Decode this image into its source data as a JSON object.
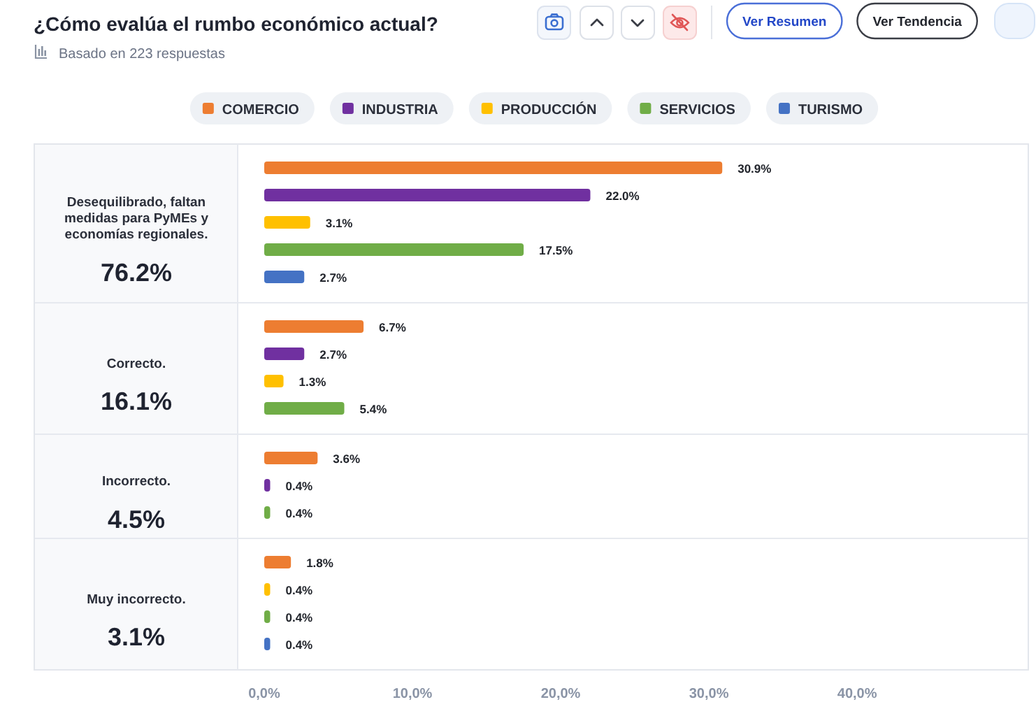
{
  "chart_data": {
    "type": "bar",
    "orientation": "horizontal",
    "title": "¿Cómo evalúa el rumbo económico actual?",
    "subtitle": "Basado en 223 respuestas",
    "categories": [
      "Desequilibrado, faltan medidas para PyMEs y economías regionales.",
      "Correcto.",
      "Incorrecto.",
      "Muy incorrecto."
    ],
    "series": [
      {
        "name": "COMERCIO",
        "color": "#ed7d31",
        "values": [
          30.9,
          6.7,
          3.6,
          1.8
        ],
        "value_labels": [
          "30.9%",
          "6.7%",
          "3.6%",
          "1.8%"
        ]
      },
      {
        "name": "INDUSTRIA",
        "color": "#7030a0",
        "values": [
          22.0,
          2.7,
          0.4,
          null
        ],
        "value_labels": [
          "22.0%",
          "2.7%",
          "0.4%",
          null
        ]
      },
      {
        "name": "PRODUCCIÓN",
        "color": "#ffc000",
        "values": [
          3.1,
          1.3,
          null,
          0.4
        ],
        "value_labels": [
          "3.1%",
          "1.3%",
          null,
          "0.4%"
        ]
      },
      {
        "name": "SERVICIOS",
        "color": "#70ad47",
        "values": [
          17.5,
          5.4,
          0.4,
          0.4
        ],
        "value_labels": [
          "17.5%",
          "5.4%",
          "0.4%",
          "0.4%"
        ]
      },
      {
        "name": "TURISMO",
        "color": "#4472c4",
        "values": [
          2.7,
          null,
          null,
          0.4
        ],
        "value_labels": [
          "2.7%",
          null,
          null,
          "0.4%"
        ]
      }
    ],
    "xlim": [
      0,
      51.5
    ],
    "xticks": [
      {
        "value": 0,
        "label": "0,0%"
      },
      {
        "value": 10,
        "label": "10,0%"
      },
      {
        "value": 20,
        "label": "20,0%"
      },
      {
        "value": 30,
        "label": "30,0%"
      },
      {
        "value": 40,
        "label": "40,0%"
      }
    ],
    "legend": "top",
    "annotations": [
      "76.2%",
      "16.1%",
      "4.5%",
      "3.1%",
      "Ver Resumen",
      "Ver Tendencia"
    ]
  }
}
